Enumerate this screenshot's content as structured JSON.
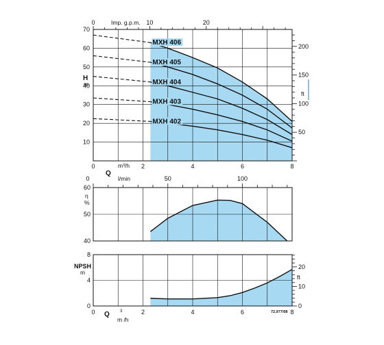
{
  "colors": {
    "fill": "#a7d9f2",
    "line": "#111111",
    "accent": "#2a7fc4"
  },
  "chart_data": [
    {
      "type": "line",
      "panel": "head",
      "x_axis": {
        "label": "Q",
        "unit": "m³/h",
        "range": [
          0,
          8
        ],
        "ticks": [
          "0",
          "2",
          "4",
          "6",
          "8"
        ]
      },
      "x2_axis": {
        "label": "Imp. g.p.m.",
        "range": [
          0,
          35.2
        ],
        "ticks": [
          "0",
          "10",
          "20"
        ]
      },
      "y_axis": {
        "label": "H",
        "unit": "m",
        "range": [
          0,
          70
        ],
        "ticks": [
          "10",
          "20",
          "30",
          "40",
          "50",
          "60",
          "70"
        ]
      },
      "y2_axis": {
        "unit": "ft",
        "ticks": [
          "50",
          "100",
          "150",
          "200"
        ]
      },
      "operating_range": [
        2.3,
        8
      ],
      "grid": true,
      "series": [
        {
          "name": "MXH 406",
          "dashed_x": [
            0,
            2.3
          ],
          "dashed_y": [
            67,
            63
          ],
          "x": [
            2.3,
            3,
            4,
            5,
            6,
            7,
            8
          ],
          "y": [
            63,
            60,
            55,
            49.5,
            42,
            33,
            21
          ]
        },
        {
          "name": "MXH 405",
          "dashed_x": [
            0,
            2.3
          ],
          "dashed_y": [
            56,
            52.5
          ],
          "x": [
            2.3,
            3,
            4,
            5,
            6,
            7,
            8
          ],
          "y": [
            52.5,
            50,
            46,
            41,
            35,
            27.5,
            17.5
          ]
        },
        {
          "name": "MXH 404",
          "dashed_x": [
            0,
            2.3
          ],
          "dashed_y": [
            45,
            42
          ],
          "x": [
            2.3,
            3,
            4,
            5,
            6,
            7,
            8
          ],
          "y": [
            42,
            40,
            36.5,
            33,
            28,
            22,
            14
          ]
        },
        {
          "name": "MXH 403",
          "dashed_x": [
            0,
            2.3
          ],
          "dashed_y": [
            33.5,
            31.5
          ],
          "x": [
            2.3,
            3,
            4,
            5,
            6,
            7,
            8
          ],
          "y": [
            31.5,
            30,
            27.5,
            24.5,
            21,
            16.5,
            10.5
          ]
        },
        {
          "name": "MXH 402",
          "dashed_x": [
            0,
            2.3
          ],
          "dashed_y": [
            22.5,
            21
          ],
          "x": [
            2.3,
            3,
            4,
            5,
            6,
            7,
            8
          ],
          "y": [
            21,
            20,
            18.5,
            16.5,
            14,
            11,
            7
          ]
        }
      ]
    },
    {
      "type": "area",
      "panel": "efficiency",
      "x_axis": {
        "label": "Q",
        "unit": "l/min",
        "range": [
          0,
          133.3
        ],
        "ticks": [
          "0",
          "50",
          "100"
        ]
      },
      "y_axis": {
        "label": "η",
        "unit": "%",
        "range": [
          40,
          60
        ],
        "ticks": [
          "40",
          "50",
          "60"
        ]
      },
      "grid": true,
      "x": [
        2.3,
        3,
        4,
        5,
        5.5,
        6,
        7,
        7.8
      ],
      "y": [
        43.5,
        48.5,
        53.3,
        55.3,
        55.2,
        54,
        47,
        40
      ]
    },
    {
      "type": "area",
      "panel": "npsh",
      "x_axis": {
        "label": "Q",
        "unit": "m³/h",
        "range": [
          0,
          8
        ],
        "ticks": [
          "0",
          "2",
          "4",
          "6",
          "8"
        ]
      },
      "y_axis": {
        "label": "NPSH",
        "unit": "m",
        "range": [
          0,
          8
        ],
        "ticks": [
          "0",
          "4",
          "8"
        ]
      },
      "y2_axis": {
        "unit": "ft",
        "ticks": [
          "0",
          "10",
          "20"
        ]
      },
      "grid": true,
      "x": [
        2.3,
        3,
        4,
        5,
        5.5,
        6,
        6.5,
        7,
        7.5,
        8
      ],
      "y": [
        1.2,
        1.1,
        1.1,
        1.3,
        1.6,
        2.1,
        2.8,
        3.6,
        4.6,
        5.7
      ]
    }
  ],
  "labels": {
    "imp_gpm": "Imp. g.p.m.",
    "h": "H",
    "m": "m",
    "ft": "ft",
    "q": "Q",
    "m3h": "m³/h",
    "lmin": "l/min",
    "eta": "η",
    "pct": "%",
    "npsh": "NPSH",
    "q_bottom": "Q",
    "sup3": "3",
    "m_h": "m /h",
    "code": "72,977/08"
  }
}
